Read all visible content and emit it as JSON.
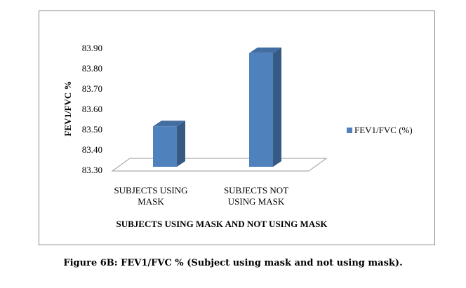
{
  "chart_data": {
    "type": "bar3d",
    "y_label": "FEV1/FVC %",
    "x_label": "SUBJECTS USING MASK AND NOT USING MASK",
    "categories": [
      "SUBJECTS USING MASK",
      "SUBJECTS NOT USING MASK"
    ],
    "series": [
      {
        "name": "FEV1/FVC (%)",
        "color": "#4f81bd",
        "values": [
          83.52,
          83.88
        ]
      }
    ],
    "ylim": [
      83.3,
      83.9
    ],
    "yticks": [
      {
        "value": 83.3,
        "label": "83.30"
      },
      {
        "value": 83.4,
        "label": "83.40"
      },
      {
        "value": 83.5,
        "label": "83.50"
      },
      {
        "value": 83.6,
        "label": "83.60"
      },
      {
        "value": 83.7,
        "label": "83.70"
      },
      {
        "value": 83.8,
        "label": "83.80"
      },
      {
        "value": 83.9,
        "label": "83.90"
      }
    ],
    "legend": "right"
  },
  "caption": "Figure 6B: FEV1/FVC % (Subject using mask and not using mask)."
}
